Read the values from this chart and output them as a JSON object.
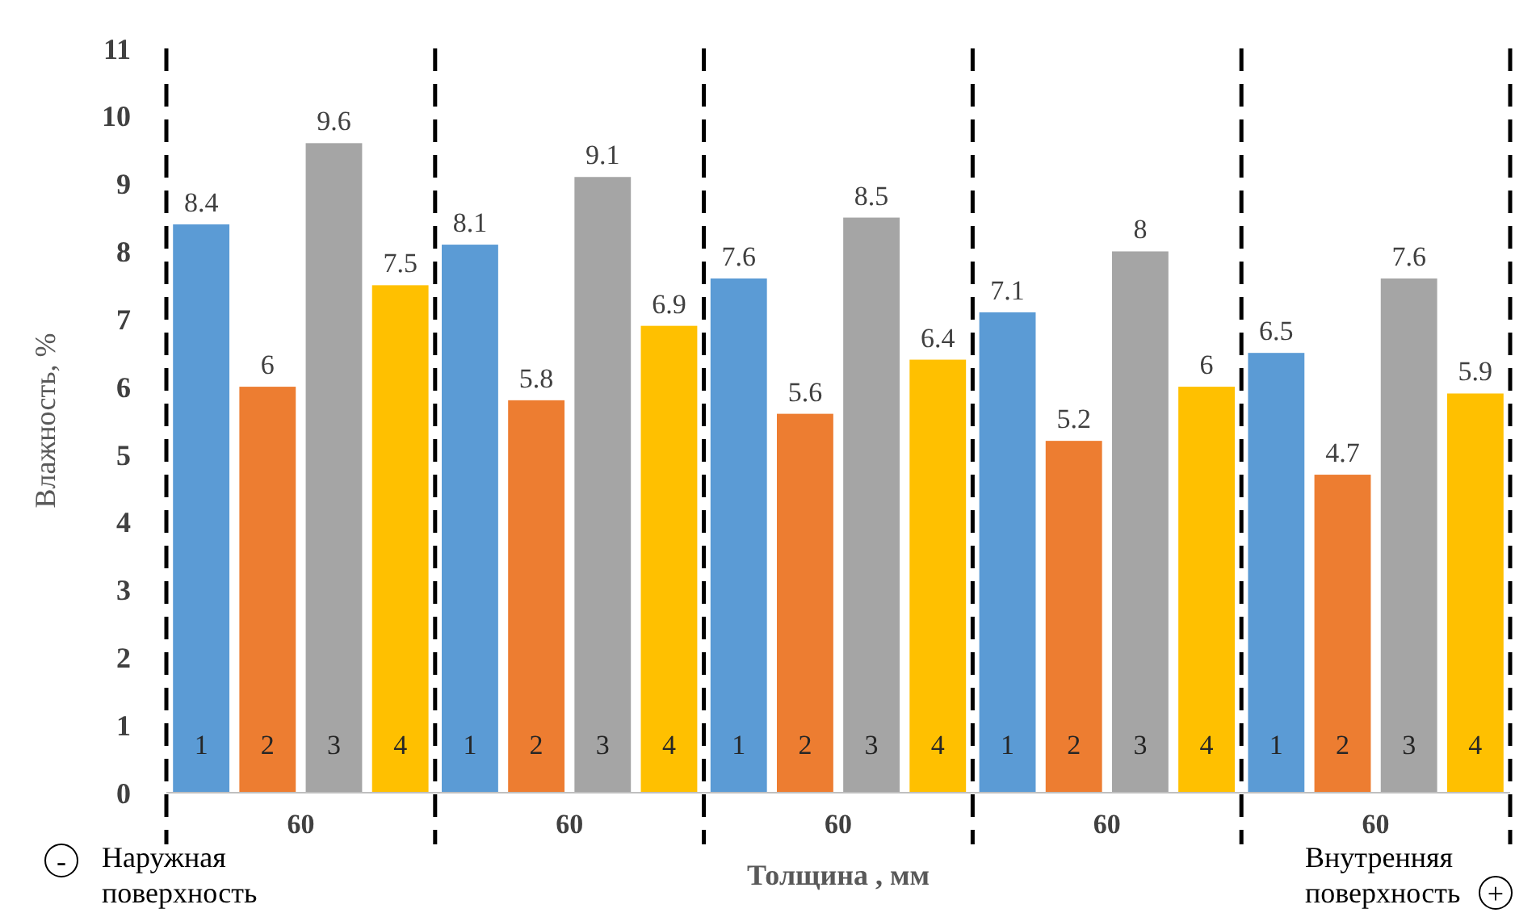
{
  "chart_data": {
    "type": "bar",
    "xlabel": "Толщина , мм",
    "ylabel": "Влажность, %",
    "categories": [
      "60",
      "60",
      "60",
      "60",
      "60"
    ],
    "series": [
      {
        "name": "1",
        "color": "#5b9bd5",
        "values": [
          8.4,
          8.1,
          7.6,
          7.1,
          6.5
        ]
      },
      {
        "name": "2",
        "color": "#ed7d31",
        "values": [
          6,
          5.8,
          5.6,
          5.2,
          4.7
        ]
      },
      {
        "name": "3",
        "color": "#a5a5a5",
        "values": [
          9.6,
          9.1,
          8.5,
          8,
          7.6
        ]
      },
      {
        "name": "4",
        "color": "#ffc000",
        "values": [
          7.5,
          6.9,
          6.4,
          6,
          5.9
        ]
      }
    ],
    "ylim": [
      0,
      11
    ],
    "yticks": [
      0,
      1,
      2,
      3,
      4,
      5,
      6,
      7,
      8,
      9,
      10,
      11
    ],
    "grid": false,
    "data_labels": true,
    "annotations": [
      "Наружная\nповерхность",
      "Внутренняя\nповерхность",
      "-",
      "+"
    ]
  }
}
